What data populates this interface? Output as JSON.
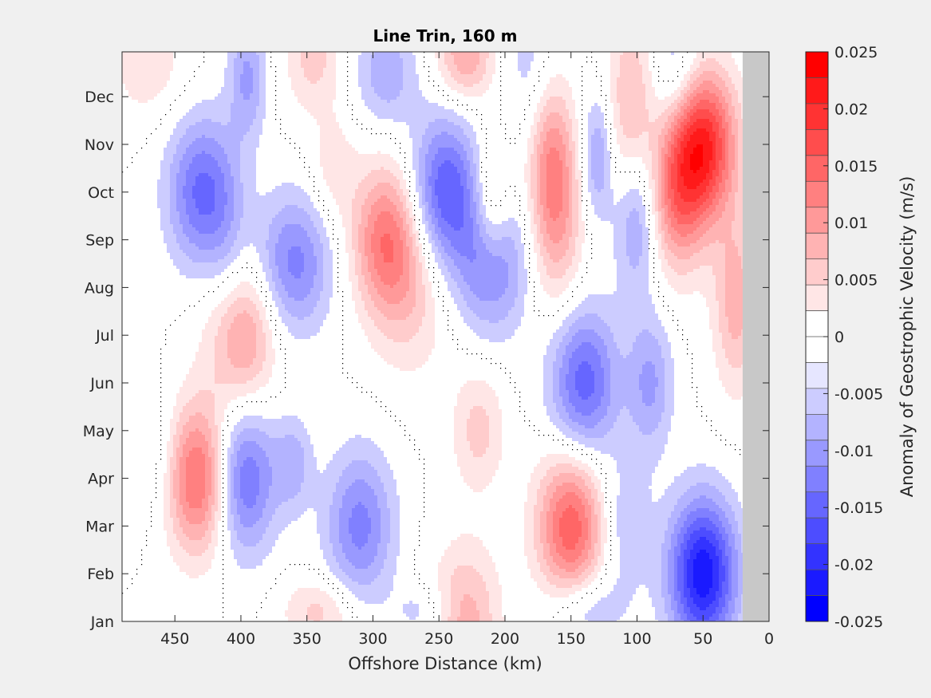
{
  "chart_data": {
    "type": "heatmap",
    "subtype": "filled-contour",
    "title": "Line Trin, 160 m",
    "xlabel": "Offshore Distance (km)",
    "xlim": [
      490,
      0
    ],
    "x_reversed": true,
    "xticks": [
      450,
      400,
      350,
      300,
      250,
      200,
      150,
      100,
      50,
      0
    ],
    "ylim": [
      "Jan",
      "Dec+"
    ],
    "yticks": [
      "Jan",
      "Feb",
      "Mar",
      "Apr",
      "May",
      "Jun",
      "Jul",
      "Aug",
      "Sep",
      "Oct",
      "Nov",
      "Dec"
    ],
    "colorbar": {
      "label": "Anomaly of Geostrophic Velocity (m/s)",
      "range": [
        -0.025,
        0.025
      ],
      "ticks": [
        "0.025",
        "0.02",
        "0.015",
        "0.01",
        "0.005",
        "0",
        "-0.005",
        "-0.01",
        "-0.015",
        "-0.02",
        "-0.025"
      ],
      "levels": [
        -0.025,
        -0.0225,
        -0.02,
        -0.0175,
        -0.015,
        -0.0125,
        -0.01,
        -0.0075,
        -0.005,
        -0.0025,
        0,
        0.0025,
        0.005,
        0.0075,
        0.01,
        0.0125,
        0.015,
        0.0175,
        0.02,
        0.0225,
        0.025
      ],
      "colormap": [
        "#0000ff",
        "#1a1aff",
        "#3333ff",
        "#4d4dff",
        "#6666ff",
        "#8080ff",
        "#9999ff",
        "#b3b3ff",
        "#ccccff",
        "#e6e6ff",
        "#ffffff",
        "#ffffff",
        "#ffe6e6",
        "#ffcccc",
        "#ffb3b3",
        "#ff9999",
        "#ff8080",
        "#ff6666",
        "#ff4d4d",
        "#ff3333",
        "#ff1a1a",
        "#ff0000"
      ]
    },
    "no_data_region": {
      "x_from": 20,
      "x_to": 0,
      "color": "#c8c8c8"
    },
    "zero_contour": true,
    "features": [
      {
        "x": 430,
        "y": "Apr",
        "value": 0.018
      },
      {
        "x": 400,
        "y": "Apr",
        "value": -0.015
      },
      {
        "x": 400,
        "y": "Jul",
        "value": 0.012
      },
      {
        "x": 430,
        "y": "Oct",
        "value": -0.013
      },
      {
        "x": 290,
        "y": "Sep",
        "value": 0.014
      },
      {
        "x": 245,
        "y": "Oct",
        "value": -0.015
      },
      {
        "x": 150,
        "y": "Mar",
        "value": 0.017
      },
      {
        "x": 140,
        "y": "Jun",
        "value": -0.014
      },
      {
        "x": 50,
        "y": "Nov",
        "value": 0.022
      },
      {
        "x": 50,
        "y": "Feb",
        "value": -0.022
      },
      {
        "x": 230,
        "y": "Jan",
        "value": 0.009
      },
      {
        "x": 310,
        "y": "Mar",
        "value": -0.011
      }
    ]
  }
}
